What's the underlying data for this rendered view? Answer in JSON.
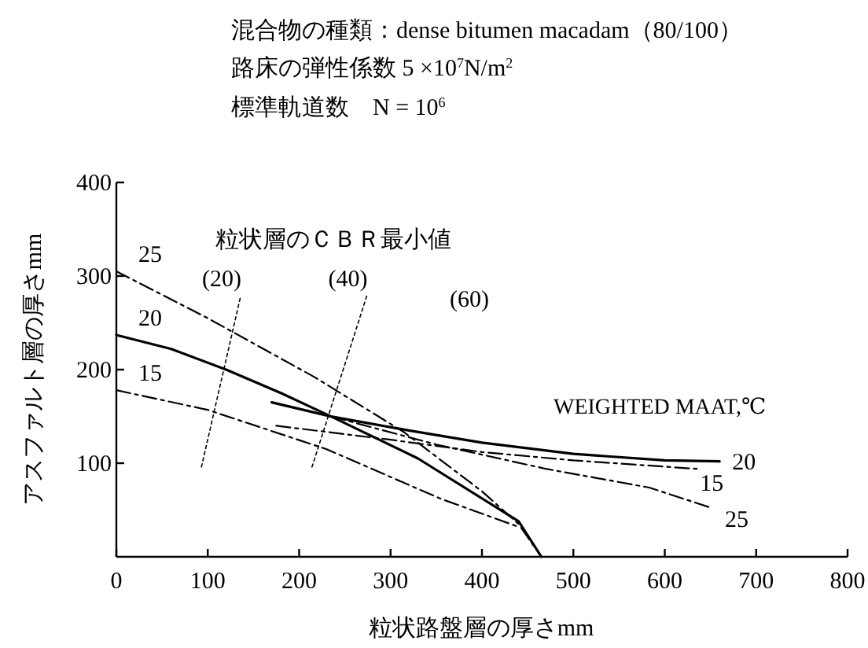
{
  "chart_data": {
    "type": "line",
    "title": "混合物の種類：dense bitumen macadam（80/100）",
    "subtitle": "路床の弾性係数 5 ×10$^{7}$N/m$^{2}$",
    "xlabel": "粒状路盤層の厚さmm",
    "ylabel": "アスファルト層の厚さmm",
    "xlim": [
      0,
      800
    ],
    "ylim": [
      0,
      400
    ],
    "xticks": [
      0,
      100,
      200,
      300,
      400,
      500,
      600,
      700,
      800
    ],
    "yticks": [
      100,
      200,
      300,
      400
    ],
    "grid": false,
    "marker": "none",
    "annotations": [
      "標準軌道数　N = 10$^{6}$",
      "粒状層のＣＢＲ最小値",
      "WEIGHTED MAAT,℃",
      {
        "text": "(60)"
      }
    ],
    "series": [
      {
        "name": "25",
        "color": "#000000",
        "line_style": "dashed",
        "x": [
          0,
          100,
          217,
          315,
          400,
          440,
          465
        ],
        "values": [
          305,
          255,
          192,
          133,
          70,
          35,
          0
        ]
      },
      {
        "name": "20",
        "color": "#000000",
        "line_style": "solid",
        "x": [
          0,
          60,
          120,
          180,
          235,
          330,
          440,
          465
        ],
        "values": [
          237,
          222,
          200,
          175,
          150,
          105,
          38,
          0
        ]
      },
      {
        "name": "15",
        "color": "#000000",
        "line_style": "dashed",
        "x": [
          0,
          100,
          230,
          355,
          440
        ],
        "values": [
          178,
          157,
          115,
          62,
          32
        ]
      },
      {
        "name": "20",
        "color": "#000000",
        "line_style": "solid",
        "x": [
          170,
          235,
          320,
          400,
          500,
          600,
          660
        ],
        "values": [
          165,
          150,
          135,
          122,
          110,
          103,
          102
        ]
      },
      {
        "name": "15",
        "color": "#000000",
        "line_style": "dashed",
        "x": [
          175,
          300,
          400,
          500,
          635
        ],
        "values": [
          140,
          125,
          112,
          103,
          94
        ]
      },
      {
        "name": "25",
        "color": "#000000",
        "line_style": "dashed",
        "x": [
          235,
          350,
          470,
          583,
          652
        ],
        "values": [
          150,
          120,
          94,
          74,
          52
        ]
      },
      {
        "name": "(20)",
        "color": "#000000",
        "line_style": "dotted",
        "x": [
          93,
          136
        ],
        "values": [
          96,
          279
        ]
      },
      {
        "name": "(40)",
        "color": "#000000",
        "line_style": "dotted",
        "x": [
          214,
          274
        ],
        "values": [
          96,
          279
        ]
      }
    ]
  }
}
